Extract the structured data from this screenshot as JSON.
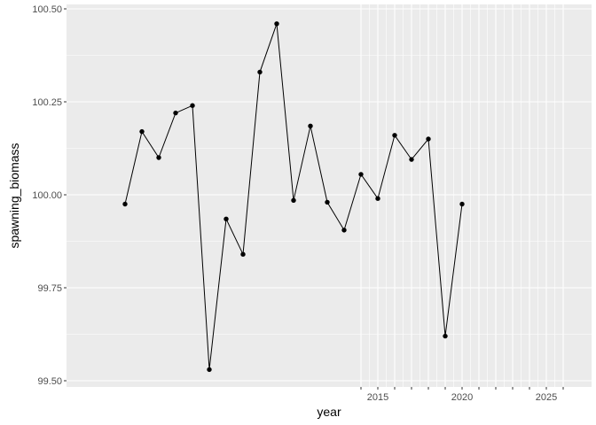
{
  "chart_data": {
    "type": "line",
    "xlabel": "year",
    "ylabel": "spawning_biomass",
    "ylim": [
      99.5,
      100.5
    ],
    "xlim": [
      1994,
      2026
    ],
    "y_ticks": [
      {
        "value": 99.5,
        "label": "99.50"
      },
      {
        "value": 99.75,
        "label": "99.75"
      },
      {
        "value": 100.0,
        "label": "100.00"
      },
      {
        "value": 100.25,
        "label": "100.25"
      },
      {
        "value": 100.5,
        "label": "100.50"
      }
    ],
    "x_ticks": [
      {
        "value": 2015,
        "label": "2015"
      },
      {
        "value": 2020,
        "label": "2020"
      },
      {
        "value": 2025,
        "label": "2025"
      }
    ],
    "x_minor_ticks": [
      2014,
      2016,
      2017,
      2018,
      2019,
      2021,
      2022,
      2023,
      2024,
      2026
    ],
    "dense_grid_from": 2014,
    "grid": true,
    "colors": {
      "panel": "#ebebeb",
      "grid": "#ffffff",
      "line": "#000000",
      "point": "#000000"
    },
    "series": [
      {
        "x": [
          2000,
          2001,
          2002,
          2003,
          2004,
          2005,
          2006,
          2007,
          2008,
          2009,
          2010,
          2011,
          2012,
          2013,
          2014,
          2015,
          2016,
          2017,
          2018,
          2019,
          2020
        ],
        "values": [
          99.975,
          100.17,
          100.1,
          100.22,
          100.24,
          99.53,
          99.935,
          99.84,
          100.33,
          100.46,
          99.985,
          100.185,
          99.98,
          99.905,
          100.055,
          99.99,
          100.16,
          100.095,
          100.15,
          99.62,
          99.975
        ]
      }
    ]
  }
}
